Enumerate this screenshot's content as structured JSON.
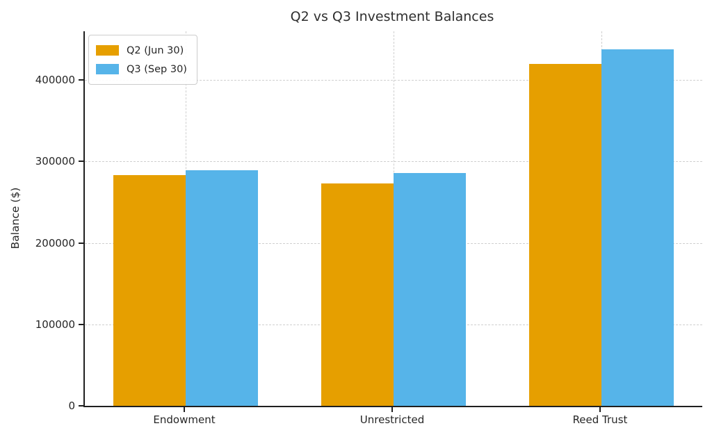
{
  "chart_data": {
    "type": "bar",
    "title": "Q2 vs Q3 Investment Balances",
    "xlabel": "",
    "ylabel": "Balance ($)",
    "categories": [
      "Endowment",
      "Unrestricted",
      "Reed Trust"
    ],
    "series": [
      {
        "name": "Q2 (Jun 30)",
        "color": "#E69F00",
        "values": [
          283000,
          273000,
          420000
        ]
      },
      {
        "name": "Q3 (Sep 30)",
        "color": "#56B4E9",
        "values": [
          289000,
          286000,
          438000
        ]
      }
    ],
    "ylim": [
      0,
      460000
    ],
    "yticks": [
      0,
      100000,
      200000,
      300000,
      400000
    ],
    "grid": true,
    "grid_style": "dashed",
    "legend_position": "upper left",
    "background_color": "#ffffff",
    "spine_color": "#1f1f1f"
  }
}
